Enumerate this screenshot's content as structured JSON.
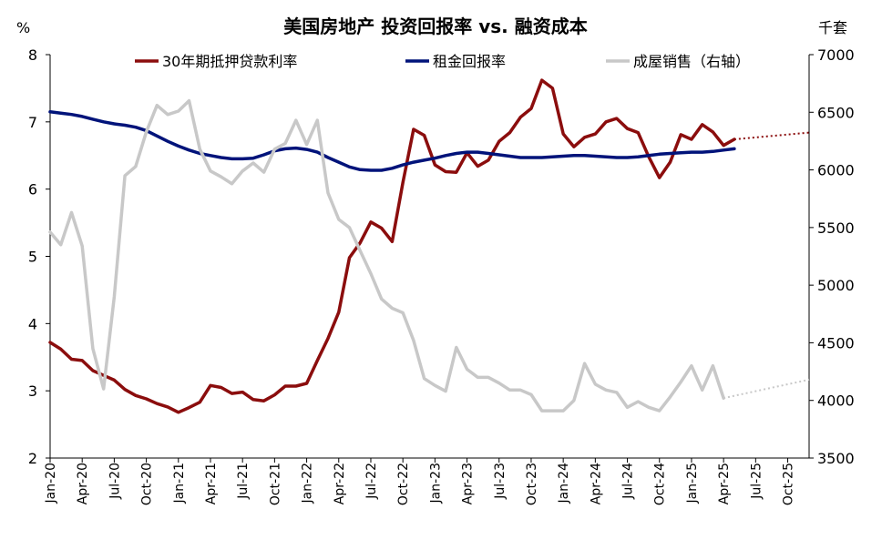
{
  "chart_data": {
    "type": "line",
    "title": "美国房地产 投资回报率 vs. 融资成本",
    "left_axis": {
      "unit": "%",
      "range": [
        2,
        8
      ],
      "ticks": [
        2,
        3,
        4,
        5,
        6,
        7,
        8
      ]
    },
    "right_axis": {
      "unit": "千套",
      "range": [
        3500,
        7000
      ],
      "ticks": [
        3500,
        4000,
        4500,
        5000,
        5500,
        6000,
        6500,
        7000
      ]
    },
    "x_axis": {
      "start": "2020-01",
      "end": "2025-12",
      "tick_labels": [
        "Jan-20",
        "Apr-20",
        "Jul-20",
        "Oct-20",
        "Jan-21",
        "Apr-21",
        "Jul-21",
        "Oct-21",
        "Jan-22",
        "Apr-22",
        "Jul-22",
        "Oct-22",
        "Jan-23",
        "Apr-23",
        "Jul-23",
        "Oct-23",
        "Jan-24",
        "Apr-24",
        "Jul-24",
        "Oct-24",
        "Jan-25",
        "Apr-25",
        "Jul-25",
        "Oct-25"
      ]
    },
    "legend": {
      "position": "top"
    },
    "series": [
      {
        "name": "30年期抵押贷款利率",
        "axis": "left",
        "color": "#8b0d0d",
        "style": "solid",
        "points": [
          [
            "2020-01",
            3.72
          ],
          [
            "2020-02",
            3.62
          ],
          [
            "2020-03",
            3.47
          ],
          [
            "2020-04",
            3.45
          ],
          [
            "2020-05",
            3.3
          ],
          [
            "2020-06",
            3.23
          ],
          [
            "2020-07",
            3.16
          ],
          [
            "2020-08",
            3.02
          ],
          [
            "2020-09",
            2.93
          ],
          [
            "2020-10",
            2.88
          ],
          [
            "2020-11",
            2.81
          ],
          [
            "2020-12",
            2.76
          ],
          [
            "2021-01",
            2.68
          ],
          [
            "2021-02",
            2.75
          ],
          [
            "2021-03",
            2.83
          ],
          [
            "2021-04",
            3.08
          ],
          [
            "2021-05",
            3.05
          ],
          [
            "2021-06",
            2.96
          ],
          [
            "2021-07",
            2.98
          ],
          [
            "2021-08",
            2.87
          ],
          [
            "2021-09",
            2.85
          ],
          [
            "2021-10",
            2.94
          ],
          [
            "2021-11",
            3.07
          ],
          [
            "2021-12",
            3.07
          ],
          [
            "2022-01",
            3.11
          ],
          [
            "2022-02",
            3.45
          ],
          [
            "2022-03",
            3.78
          ],
          [
            "2022-04",
            4.17
          ],
          [
            "2022-05",
            4.98
          ],
          [
            "2022-06",
            5.2
          ],
          [
            "2022-07",
            5.51
          ],
          [
            "2022-08",
            5.42
          ],
          [
            "2022-09",
            5.22
          ],
          [
            "2022-10",
            6.1
          ],
          [
            "2022-11",
            6.89
          ],
          [
            "2022-12",
            6.8
          ],
          [
            "2023-01",
            6.36
          ],
          [
            "2023-02",
            6.26
          ],
          [
            "2023-03",
            6.25
          ],
          [
            "2023-04",
            6.54
          ],
          [
            "2023-05",
            6.34
          ],
          [
            "2023-06",
            6.43
          ],
          [
            "2023-07",
            6.71
          ],
          [
            "2023-08",
            6.84
          ],
          [
            "2023-09",
            7.07
          ],
          [
            "2023-10",
            7.2
          ],
          [
            "2023-11",
            7.62
          ],
          [
            "2023-12",
            7.5
          ],
          [
            "2024-01",
            6.82
          ],
          [
            "2024-02",
            6.63
          ],
          [
            "2024-03",
            6.77
          ],
          [
            "2024-04",
            6.82
          ],
          [
            "2024-05",
            7.0
          ],
          [
            "2024-06",
            7.05
          ],
          [
            "2024-07",
            6.9
          ],
          [
            "2024-08",
            6.84
          ],
          [
            "2024-09",
            6.48
          ],
          [
            "2024-10",
            6.17
          ],
          [
            "2024-11",
            6.4
          ],
          [
            "2024-12",
            6.81
          ],
          [
            "2025-01",
            6.74
          ],
          [
            "2025-02",
            6.96
          ],
          [
            "2025-03",
            6.85
          ],
          [
            "2025-04",
            6.65
          ],
          [
            "2025-05",
            6.74
          ]
        ]
      },
      {
        "name": "30年期抵押贷款利率",
        "axis": "left",
        "color": "#8b0d0d",
        "style": "dotted",
        "points": [
          [
            "2025-05",
            6.74
          ],
          [
            "2025-12",
            6.84
          ]
        ]
      },
      {
        "name": "租金回报率",
        "axis": "left",
        "color": "#00137a",
        "style": "solid",
        "points": [
          [
            "2020-01",
            7.15
          ],
          [
            "2020-02",
            7.13
          ],
          [
            "2020-03",
            7.11
          ],
          [
            "2020-04",
            7.08
          ],
          [
            "2020-05",
            7.04
          ],
          [
            "2020-06",
            7.0
          ],
          [
            "2020-07",
            6.97
          ],
          [
            "2020-08",
            6.95
          ],
          [
            "2020-09",
            6.92
          ],
          [
            "2020-10",
            6.87
          ],
          [
            "2020-11",
            6.79
          ],
          [
            "2020-12",
            6.71
          ],
          [
            "2021-01",
            6.64
          ],
          [
            "2021-02",
            6.58
          ],
          [
            "2021-03",
            6.53
          ],
          [
            "2021-04",
            6.5
          ],
          [
            "2021-05",
            6.47
          ],
          [
            "2021-06",
            6.45
          ],
          [
            "2021-07",
            6.45
          ],
          [
            "2021-08",
            6.46
          ],
          [
            "2021-09",
            6.51
          ],
          [
            "2021-10",
            6.57
          ],
          [
            "2021-11",
            6.6
          ],
          [
            "2021-12",
            6.61
          ],
          [
            "2022-01",
            6.59
          ],
          [
            "2022-02",
            6.55
          ],
          [
            "2022-03",
            6.47
          ],
          [
            "2022-04",
            6.4
          ],
          [
            "2022-05",
            6.33
          ],
          [
            "2022-06",
            6.29
          ],
          [
            "2022-07",
            6.28
          ],
          [
            "2022-08",
            6.28
          ],
          [
            "2022-09",
            6.31
          ],
          [
            "2022-10",
            6.36
          ],
          [
            "2022-11",
            6.4
          ],
          [
            "2022-12",
            6.43
          ],
          [
            "2023-01",
            6.46
          ],
          [
            "2023-02",
            6.5
          ],
          [
            "2023-03",
            6.53
          ],
          [
            "2023-04",
            6.55
          ],
          [
            "2023-05",
            6.55
          ],
          [
            "2023-06",
            6.53
          ],
          [
            "2023-07",
            6.51
          ],
          [
            "2023-08",
            6.49
          ],
          [
            "2023-09",
            6.47
          ],
          [
            "2023-10",
            6.47
          ],
          [
            "2023-11",
            6.47
          ],
          [
            "2023-12",
            6.48
          ],
          [
            "2024-01",
            6.49
          ],
          [
            "2024-02",
            6.5
          ],
          [
            "2024-03",
            6.5
          ],
          [
            "2024-04",
            6.49
          ],
          [
            "2024-05",
            6.48
          ],
          [
            "2024-06",
            6.47
          ],
          [
            "2024-07",
            6.47
          ],
          [
            "2024-08",
            6.48
          ],
          [
            "2024-09",
            6.5
          ],
          [
            "2024-10",
            6.52
          ],
          [
            "2024-11",
            6.53
          ],
          [
            "2024-12",
            6.54
          ],
          [
            "2025-01",
            6.55
          ],
          [
            "2025-02",
            6.55
          ],
          [
            "2025-03",
            6.56
          ],
          [
            "2025-04",
            6.58
          ],
          [
            "2025-05",
            6.6
          ]
        ]
      },
      {
        "name": "成屋销售（右轴）",
        "axis": "right",
        "color": "#c8c8c8",
        "style": "solid",
        "points": [
          [
            "2020-01",
            5460
          ],
          [
            "2020-02",
            5350
          ],
          [
            "2020-03",
            5630
          ],
          [
            "2020-04",
            5340
          ],
          [
            "2020-05",
            4450
          ],
          [
            "2020-06",
            4100
          ],
          [
            "2020-07",
            4900
          ],
          [
            "2020-08",
            5950
          ],
          [
            "2020-09",
            6030
          ],
          [
            "2020-10",
            6330
          ],
          [
            "2020-11",
            6560
          ],
          [
            "2020-12",
            6480
          ],
          [
            "2021-01",
            6510
          ],
          [
            "2021-02",
            6600
          ],
          [
            "2021-03",
            6180
          ],
          [
            "2021-04",
            5990
          ],
          [
            "2021-05",
            5940
          ],
          [
            "2021-06",
            5880
          ],
          [
            "2021-07",
            5990
          ],
          [
            "2021-08",
            6060
          ],
          [
            "2021-09",
            5980
          ],
          [
            "2021-10",
            6180
          ],
          [
            "2021-11",
            6230
          ],
          [
            "2021-12",
            6430
          ],
          [
            "2022-01",
            6220
          ],
          [
            "2022-02",
            6430
          ],
          [
            "2022-03",
            5800
          ],
          [
            "2022-04",
            5570
          ],
          [
            "2022-05",
            5500
          ],
          [
            "2022-06",
            5300
          ],
          [
            "2022-07",
            5100
          ],
          [
            "2022-08",
            4880
          ],
          [
            "2022-09",
            4800
          ],
          [
            "2022-10",
            4760
          ],
          [
            "2022-11",
            4520
          ],
          [
            "2022-12",
            4190
          ],
          [
            "2023-01",
            4130
          ],
          [
            "2023-02",
            4080
          ],
          [
            "2023-03",
            4460
          ],
          [
            "2023-04",
            4270
          ],
          [
            "2023-05",
            4200
          ],
          [
            "2023-06",
            4200
          ],
          [
            "2023-07",
            4150
          ],
          [
            "2023-08",
            4090
          ],
          [
            "2023-09",
            4090
          ],
          [
            "2023-10",
            4050
          ],
          [
            "2023-11",
            3910
          ],
          [
            "2023-12",
            3910
          ],
          [
            "2024-01",
            3910
          ],
          [
            "2024-02",
            4000
          ],
          [
            "2024-03",
            4320
          ],
          [
            "2024-04",
            4140
          ],
          [
            "2024-05",
            4090
          ],
          [
            "2024-06",
            4070
          ],
          [
            "2024-07",
            3940
          ],
          [
            "2024-08",
            3990
          ],
          [
            "2024-09",
            3940
          ],
          [
            "2024-10",
            3910
          ],
          [
            "2024-11",
            4030
          ],
          [
            "2024-12",
            4160
          ],
          [
            "2025-01",
            4300
          ],
          [
            "2025-02",
            4090
          ],
          [
            "2025-03",
            4300
          ],
          [
            "2025-04",
            4020
          ]
        ]
      },
      {
        "name": "成屋销售（右轴）",
        "axis": "right",
        "color": "#c8c8c8",
        "style": "dotted",
        "points": [
          [
            "2025-04",
            4020
          ],
          [
            "2025-12",
            4180
          ]
        ]
      }
    ]
  }
}
